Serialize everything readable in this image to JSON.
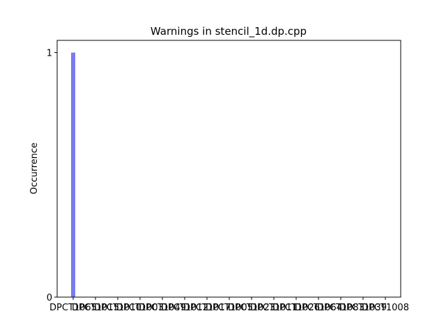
{
  "chart_data": {
    "type": "bar",
    "title": "Warnings in stencil_1d.dp.cpp",
    "ylabel": "Occurrence",
    "categories": [
      "DPCT1065",
      "DPCT1015",
      "DPCT1010",
      "DPCT1003",
      "DPCT1049",
      "DPCT1012",
      "DPCT1017",
      "DPCT1005",
      "DPCT1023",
      "DPCT1011",
      "DPCT1026",
      "DPCT1064",
      "DPCT1083",
      "DPCT1039",
      "DPCT1008"
    ],
    "values": [
      1,
      0,
      0,
      0,
      0,
      0,
      0,
      0,
      0,
      0,
      0,
      0,
      0,
      0,
      0
    ],
    "color": "#7b7bef",
    "ylim": [
      0,
      1.05
    ],
    "yticks": [
      0,
      1
    ],
    "grid": false
  }
}
